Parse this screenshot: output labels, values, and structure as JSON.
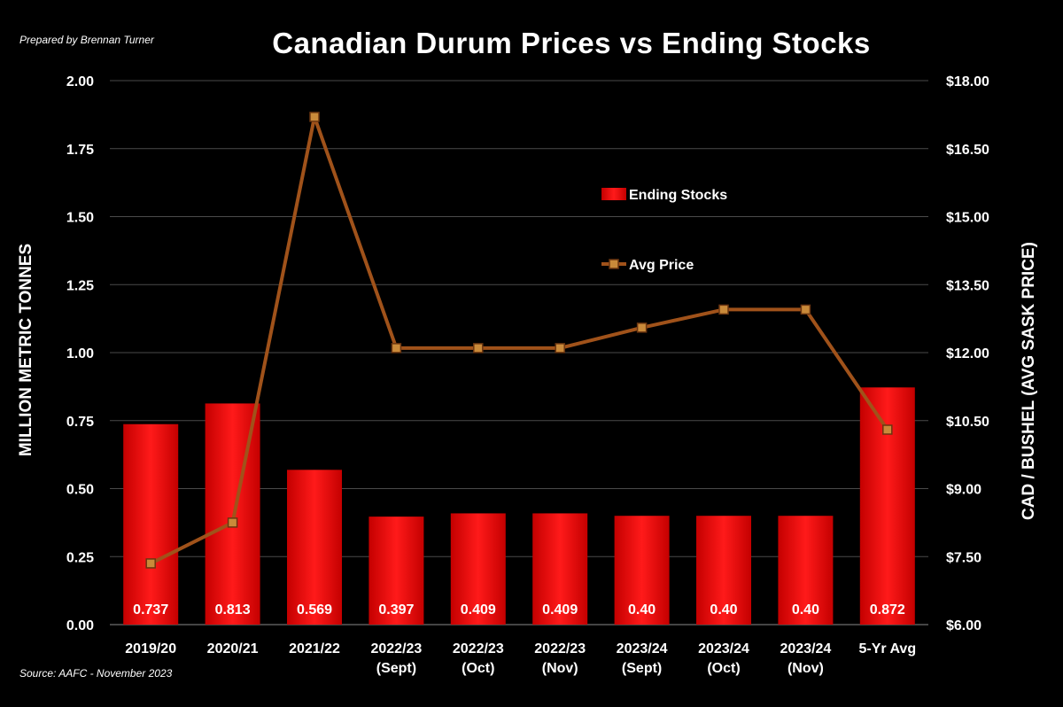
{
  "header": {
    "prepared_by": "Prepared by Brennan Turner",
    "source": "Source: AAFC - November 2023"
  },
  "chart_data": {
    "type": "bar",
    "title": "Canadian Durum Prices vs Ending Stocks",
    "categories": [
      [
        "2019/20"
      ],
      [
        "2020/21"
      ],
      [
        "2021/22"
      ],
      [
        "2022/23",
        "(Sept)"
      ],
      [
        "2022/23",
        "(Oct)"
      ],
      [
        "2022/23",
        "(Nov)"
      ],
      [
        "2023/24",
        "(Sept)"
      ],
      [
        "2023/24",
        "(Oct)"
      ],
      [
        "2023/24",
        "(Nov)"
      ],
      [
        "5-Yr Avg"
      ]
    ],
    "ylabel": "MILLION METRIC TONNES",
    "ylabel_right": "CAD / BUSHEL (AVG SASK PRICE)",
    "ylim": [
      0,
      2.0
    ],
    "ylim_right": [
      6.0,
      18.0
    ],
    "yticks": [
      "0.00",
      "0.25",
      "0.50",
      "0.75",
      "1.00",
      "1.25",
      "1.50",
      "1.75",
      "2.00"
    ],
    "yticks_right": [
      "$6.00",
      "$7.50",
      "$9.00",
      "$10.50",
      "$12.00",
      "$13.50",
      "$15.00",
      "$16.50",
      "$18.00"
    ],
    "grid": true,
    "legend_position": "upper-center-right",
    "series": [
      {
        "name": "Ending Stocks",
        "kind": "bar",
        "axis": "left",
        "color": "#ff0000",
        "values": [
          0.737,
          0.813,
          0.569,
          0.397,
          0.409,
          0.409,
          0.4,
          0.4,
          0.4,
          0.872
        ],
        "data_labels": [
          "0.737",
          "0.813",
          "0.569",
          "0.397",
          "0.409",
          "0.409",
          "0.40",
          "0.40",
          "0.40",
          "0.872"
        ]
      },
      {
        "name": "Avg Price",
        "kind": "line",
        "axis": "right",
        "color": "#a0521a",
        "values": [
          7.35,
          8.25,
          17.2,
          12.1,
          12.1,
          12.1,
          12.55,
          12.95,
          12.95,
          10.3
        ]
      }
    ]
  }
}
